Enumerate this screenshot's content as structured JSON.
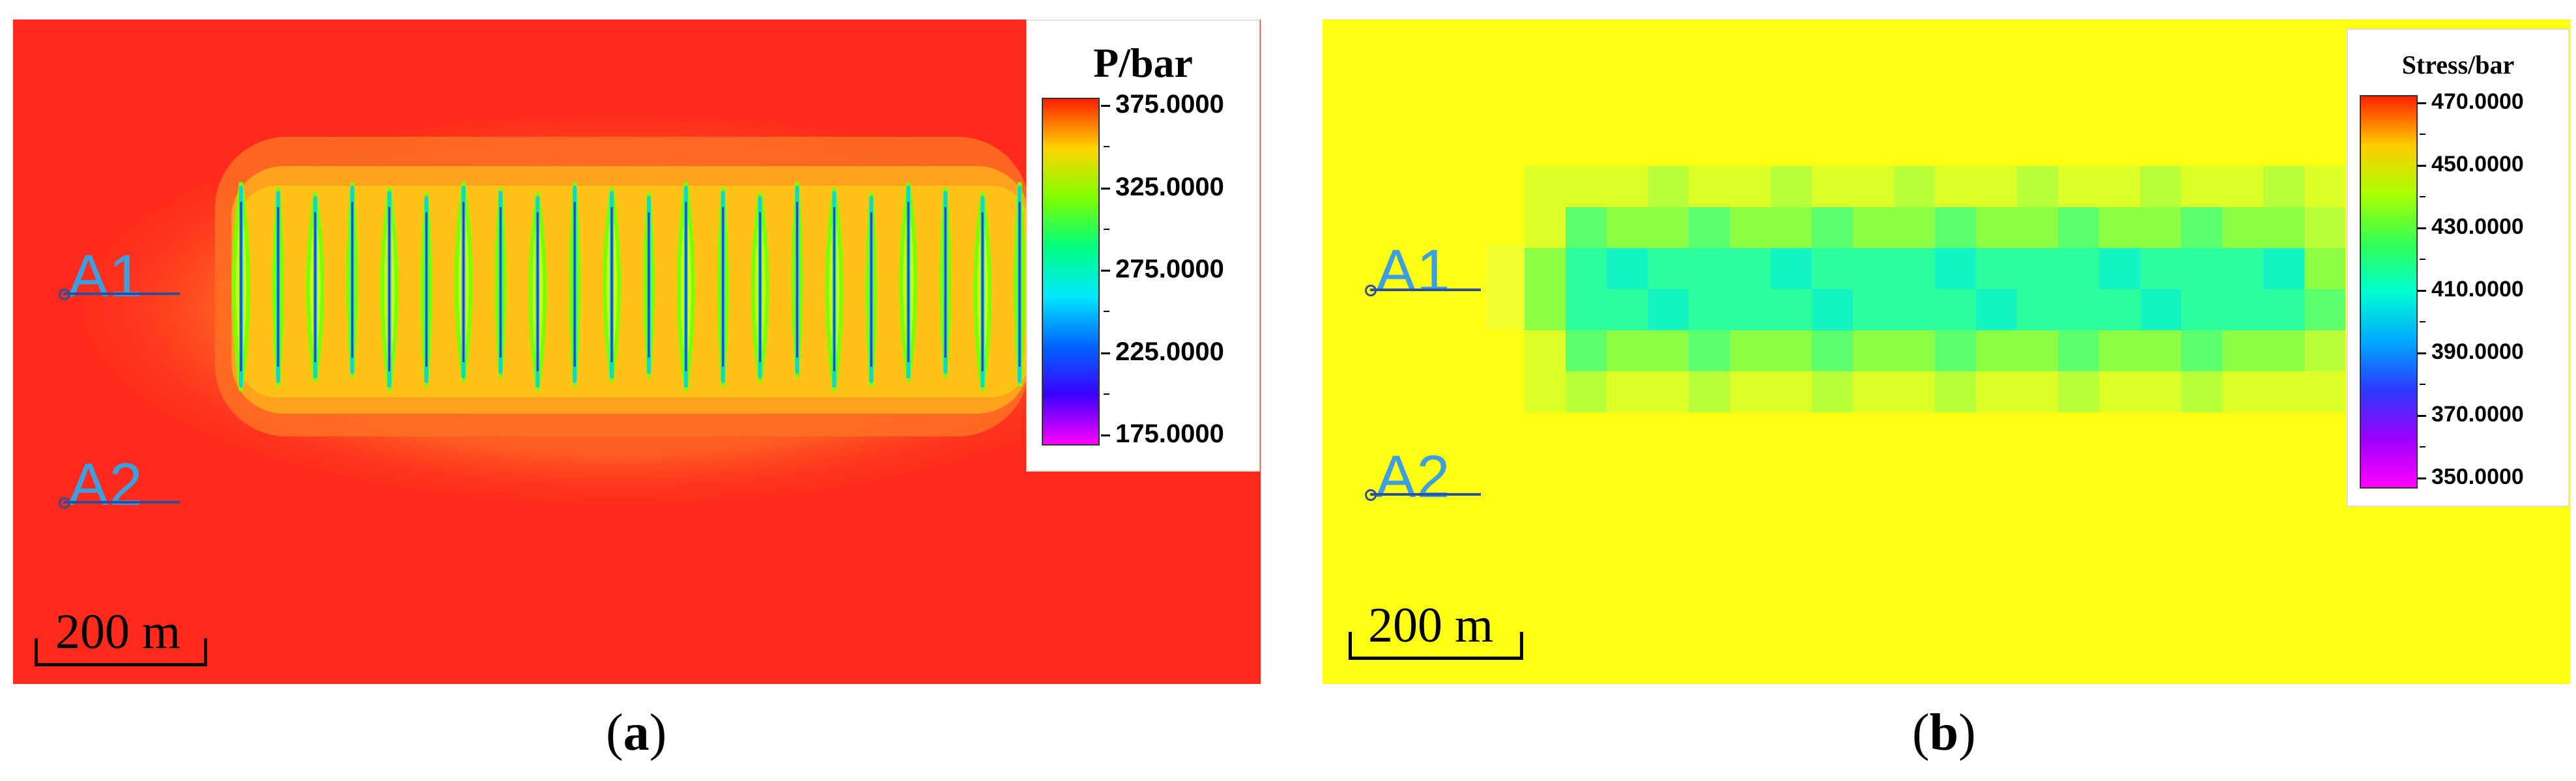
{
  "panels": {
    "a": {
      "legend": {
        "title": "P/bar",
        "ticks": [
          "375.0000",
          "325.0000",
          "275.0000",
          "225.0000",
          "175.0000"
        ],
        "colors": [
          "#ff1e00",
          "#ffd400",
          "#7fff00",
          "#00ff80",
          "#00e8ff",
          "#0066ff",
          "#3a00ff",
          "#ff00ff"
        ]
      },
      "wells": [
        {
          "label": "A1"
        },
        {
          "label": "A2"
        }
      ],
      "scale_bar": "200 m",
      "caption": {
        "open": "(",
        "letter": "a",
        "close": ")"
      },
      "background_color": "#ff2a1c",
      "fracture_count": 22
    },
    "b": {
      "legend": {
        "title": "Stress/bar",
        "ticks": [
          "470.0000",
          "450.0000",
          "430.0000",
          "410.0000",
          "390.0000",
          "370.0000",
          "350.0000"
        ],
        "colors": [
          "#ff2200",
          "#ffcc00",
          "#aaff00",
          "#33ff55",
          "#00ffd0",
          "#00aaff",
          "#2b3bff",
          "#9a00ff",
          "#ff00ff"
        ]
      },
      "wells": [
        {
          "label": "A1"
        },
        {
          "label": "A2"
        }
      ],
      "scale_bar": "200 m",
      "caption": {
        "open": "(",
        "letter": "b",
        "close": ")"
      },
      "background_color": "#ffff14"
    }
  }
}
